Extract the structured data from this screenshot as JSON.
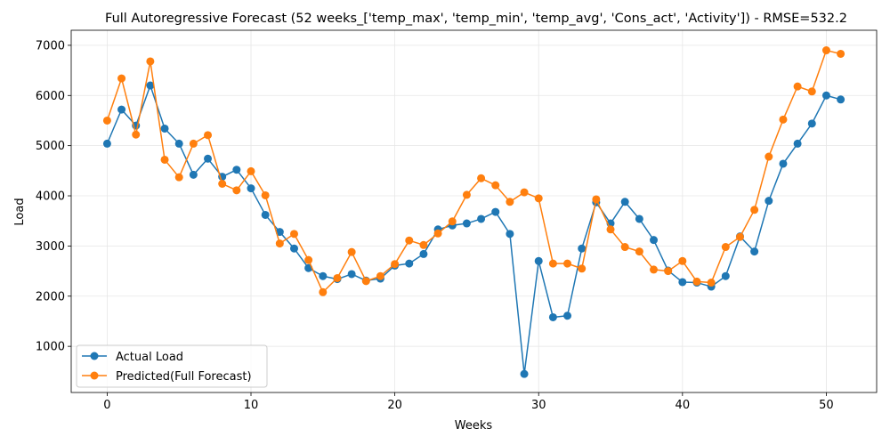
{
  "chart_data": {
    "type": "line",
    "title": "Full Autoregressive Forecast (52 weeks_['temp_max', 'temp_min', 'temp_avg', 'Cons_act', 'Activity']) - RMSE=532.2",
    "xlabel": "Weeks",
    "ylabel": "Load",
    "xlim": [
      -2.5,
      53.5
    ],
    "ylim": [
      80,
      7300
    ],
    "xticks": [
      0,
      10,
      20,
      30,
      40,
      50
    ],
    "yticks": [
      1000,
      2000,
      3000,
      4000,
      5000,
      6000,
      7000
    ],
    "grid": true,
    "legend_position": "lower-left",
    "x": [
      0,
      1,
      2,
      3,
      4,
      5,
      6,
      7,
      8,
      9,
      10,
      11,
      12,
      13,
      14,
      15,
      16,
      17,
      18,
      19,
      20,
      21,
      22,
      23,
      24,
      25,
      26,
      27,
      28,
      29,
      30,
      31,
      32,
      33,
      34,
      35,
      36,
      37,
      38,
      39,
      40,
      41,
      42,
      43,
      44,
      45,
      46,
      47,
      48,
      49,
      50,
      51
    ],
    "series": [
      {
        "name": "Actual Load",
        "color": "#1f77b4",
        "values": [
          5040,
          5720,
          5400,
          6200,
          5340,
          5040,
          4420,
          4740,
          4380,
          4520,
          4150,
          3620,
          3280,
          2950,
          2560,
          2400,
          2340,
          2440,
          2310,
          2350,
          2610,
          2650,
          2840,
          3330,
          3410,
          3450,
          3540,
          3680,
          3240,
          450,
          2700,
          1580,
          1610,
          2950,
          3870,
          3450,
          3880,
          3540,
          3120,
          2510,
          2280,
          2270,
          2190,
          2400,
          3190,
          2890,
          3900,
          4640,
          5040,
          5440,
          6000,
          5920
        ]
      },
      {
        "name": "Predicted(Full Forecast)",
        "color": "#ff7f0e",
        "values": [
          5500,
          6340,
          5220,
          6680,
          4720,
          4370,
          5040,
          5210,
          4240,
          4110,
          4490,
          4010,
          3050,
          3240,
          2720,
          2080,
          2360,
          2880,
          2300,
          2400,
          2640,
          3110,
          3020,
          3250,
          3490,
          4020,
          4350,
          4210,
          3880,
          4070,
          3950,
          2650,
          2650,
          2550,
          3930,
          3330,
          2980,
          2890,
          2530,
          2500,
          2700,
          2290,
          2270,
          2980,
          3180,
          3720,
          4780,
          5520,
          6180,
          6080,
          6900,
          6830
        ]
      }
    ]
  }
}
